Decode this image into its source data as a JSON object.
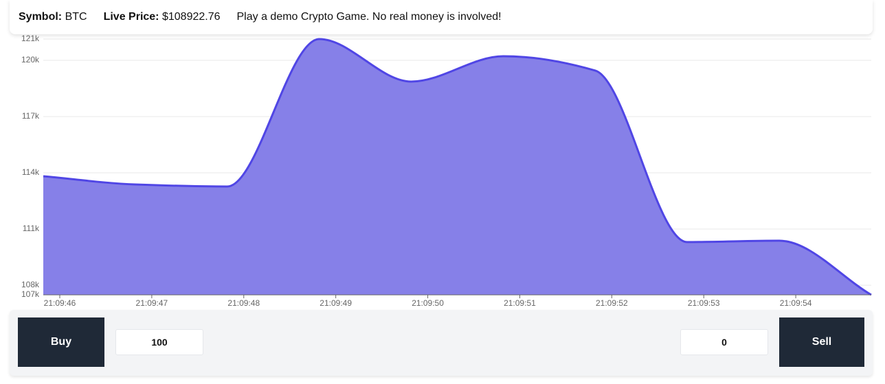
{
  "header": {
    "symbol_label": "Symbol:",
    "symbol": "BTC",
    "price_label": "Live Price:",
    "price": "$108922.76",
    "message": "Play a demo Crypto Game. No real money is involved!"
  },
  "chart_data": {
    "type": "area",
    "categories": [
      "21:09:46",
      "21:09:47",
      "21:09:48",
      "21:09:49",
      "21:09:50",
      "21:09:51",
      "21:09:52",
      "21:09:53",
      "21:09:54",
      null
    ],
    "series": [
      {
        "color": "#5046e5",
        "fill": "#8680e8",
        "values": [
          113818,
          113378,
          113269,
          121134,
          118866,
          120220,
          119452,
          110305,
          110378,
          107488
        ]
      }
    ],
    "ylim": [
      107488,
      121134
    ],
    "yticks": [
      {
        "value": 107488,
        "label": "107k"
      },
      {
        "value": 108000,
        "label": "108k"
      },
      {
        "value": 111000,
        "label": "111k"
      },
      {
        "value": 114000,
        "label": "114k"
      },
      {
        "value": 117000,
        "label": "117k"
      },
      {
        "value": 120000,
        "label": "120k"
      },
      {
        "value": 121134,
        "label": "121k"
      }
    ],
    "grid": true
  },
  "controls": {
    "buy": "Buy",
    "buy_amount": "100",
    "sell_amount": "0",
    "sell": "Sell"
  }
}
